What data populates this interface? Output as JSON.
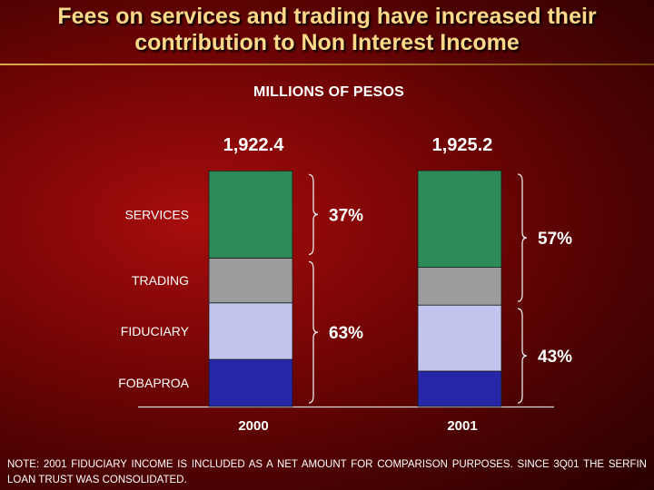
{
  "title": {
    "line1": "Fees on services and trading have increased their",
    "line2": "contribution to Non Interest Income"
  },
  "units_label": "MILLIONS OF PESOS",
  "note": "NOTE: 2001 FIDUCIARY INCOME IS INCLUDED AS A NET AMOUNT FOR COMPARISON PURPOSES. SINCE 3Q01 THE SERFIN LOAN TRUST WAS CONSOLIDATED.",
  "colors": {
    "SERVICES": "#2e8a58",
    "TRADING": "#9c9c9c",
    "FIDUCIARY": "#c2c6ee",
    "FOBAPROA": "#2626a8",
    "background": "#6a0303",
    "title": "#ffd98a"
  },
  "chart_data": {
    "type": "bar",
    "stacked": true,
    "categories": [
      "2000",
      "2001"
    ],
    "totals": [
      "1,922.4",
      "1,925.2"
    ],
    "ylim": [
      0,
      2000
    ],
    "series": [
      {
        "name": "FOBAPROA",
        "values": [
          384.5,
          288.8
        ]
      },
      {
        "name": "FIDUCIARY",
        "values": [
          461.4,
          539.1
        ]
      },
      {
        "name": "TRADING",
        "values": [
          365.3,
          307.9
        ]
      },
      {
        "name": "SERVICES",
        "values": [
          711.2,
          789.4
        ]
      }
    ],
    "groupings": [
      {
        "category": "2000",
        "label": "37%",
        "series": [
          "SERVICES"
        ]
      },
      {
        "category": "2000",
        "label": "63%",
        "series": [
          "FOBAPROA",
          "FIDUCIARY",
          "TRADING"
        ]
      },
      {
        "category": "2001",
        "label": "57%",
        "series": [
          "TRADING",
          "SERVICES"
        ]
      },
      {
        "category": "2001",
        "label": "43%",
        "series": [
          "FOBAPROA",
          "FIDUCIARY"
        ]
      }
    ]
  }
}
